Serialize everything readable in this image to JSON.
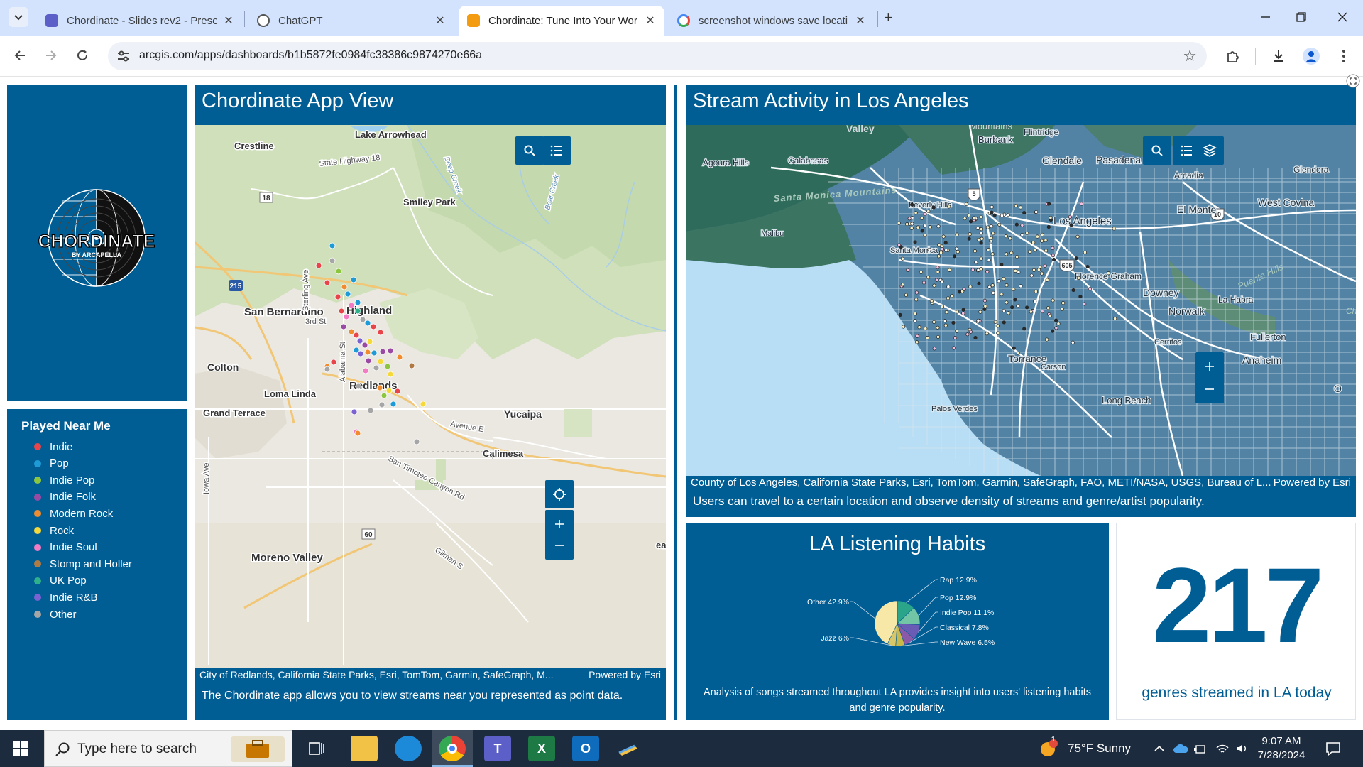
{
  "browser": {
    "tabs": [
      {
        "title": "Chordinate - Slides rev2 - Prese",
        "close": "✕",
        "color": "#5b5fc7"
      },
      {
        "title": "ChatGPT",
        "close": "✕",
        "color": "#444444"
      },
      {
        "title": "Chordinate: Tune Into Your Wor",
        "close": "✕",
        "color": "#f39c12"
      },
      {
        "title": "screenshot windows save locati",
        "close": "✕",
        "color": "#4285f4"
      }
    ],
    "url": "arcgis.com/apps/dashboards/b1b5872fe0984fc38386c9874270e66a"
  },
  "dashboard": {
    "logo": {
      "main": "CHORDINATE",
      "sub": "BY ARCAPELLA"
    },
    "legend": {
      "title": "Played Near Me",
      "items": [
        {
          "label": "Indie",
          "color": "#e8454a"
        },
        {
          "label": "Pop",
          "color": "#1e9bd7"
        },
        {
          "label": "Indie Pop",
          "color": "#8cc63f"
        },
        {
          "label": "Indie Folk",
          "color": "#9b4aa3"
        },
        {
          "label": "Modern Rock",
          "color": "#f08c2e"
        },
        {
          "label": "Rock",
          "color": "#f5d83a"
        },
        {
          "label": "Indie Soul",
          "color": "#f27bc4"
        },
        {
          "label": "Stomp and Holler",
          "color": "#b07a44"
        },
        {
          "label": "UK Pop",
          "color": "#2eb08a"
        },
        {
          "label": "Indie R&B",
          "color": "#7b61d1"
        },
        {
          "label": "Other",
          "color": "#a6a6a6"
        }
      ]
    },
    "app_view": {
      "title": "Chordinate App View",
      "map_labels": [
        "Lake Arrowhead",
        "Crestline",
        "State Highway 18",
        "Smiley Park",
        "Bear Creek",
        "Deep Creek",
        "San Bernardino",
        "Highland",
        "3rd St",
        "Sterling Ave",
        "Colton",
        "Loma Linda",
        "Alabama St",
        "Redlands",
        "Grand Terrace",
        "Yucaipa",
        "Avenue E",
        "Calimesa",
        "San Timoteo Canyon Rd",
        "Iowa Ave",
        "Moreno Valley",
        "Gilman S",
        "ea",
        "215",
        "18",
        "60"
      ],
      "attribution": "City of Redlands, California State Parks, Esri, TomTom, Garmin, SafeGraph, M...",
      "powered": "Powered by Esri",
      "caption": "The Chordinate app allows you to view streams near you represented as point data."
    },
    "stream": {
      "title": "Stream Activity in Los Angeles",
      "map_labels": [
        "Valley",
        "Mountains",
        "Flintridge",
        "Burbank",
        "Glendale",
        "Pasadena",
        "Calabasas",
        "Agoura Hills",
        "Arcadia",
        "Glendora",
        "Santa Monica Mountains",
        "Beverly Hills",
        "Los Angeles",
        "El Monte",
        "West Covina",
        "Malibu",
        "Santa Monica",
        "Florence-Graham",
        "Downey",
        "Puente Hills",
        "La Habra",
        "Norwalk",
        "Cerritos",
        "Fullerton",
        "Torrance",
        "Carson",
        "Anaheim",
        "Long Beach",
        "Palos Verdes",
        "O",
        "Ch",
        "5",
        "10",
        "605"
      ],
      "attribution": "County of Los Angeles, California State Parks, Esri, TomTom, Garmin, SafeGraph, FAO, METI/NASA, USGS, Bureau of L...",
      "powered": "Powered by Esri",
      "caption": "Users can travel to a certain location and observe density of streams and genre/artist popularity."
    },
    "habits": {
      "title": "LA Listening Habits",
      "description": "Analysis of songs streamed throughout LA provides insight into users' listening habits and genre popularity."
    },
    "kpi": {
      "value": "217",
      "label": "genres streamed in LA today"
    }
  },
  "chart_data": {
    "type": "pie",
    "categories": [
      "Other",
      "Rap",
      "Pop",
      "Indie Pop",
      "Classical",
      "New Wave",
      "Jazz"
    ],
    "values": [
      42.9,
      12.9,
      12.9,
      11.1,
      7.8,
      6.5,
      6
    ],
    "labels": [
      "Other 42.9%",
      "Rap 12.9%",
      "Pop 12.9%",
      "Indie Pop 11.1%",
      "Classical 7.8%",
      "New Wave 6.5%",
      "Jazz 6%"
    ],
    "colors": [
      "#f7e8a8",
      "#2ba58a",
      "#72c6a6",
      "#6a5bb5",
      "#8a5aa8",
      "#c9b94a",
      "#d8c66a"
    ],
    "title": "LA Listening Habits"
  },
  "taskbar": {
    "search_placeholder": "Type here to search",
    "weather": "75°F  Sunny",
    "time": "9:07 AM",
    "date": "7/28/2024",
    "weather_badge": "1"
  }
}
